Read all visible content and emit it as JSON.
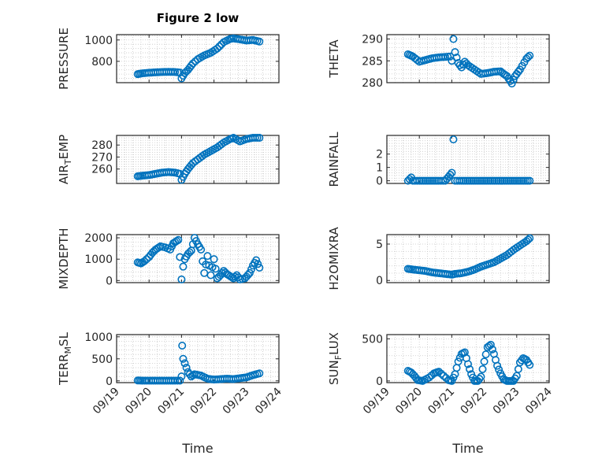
{
  "figure_title": "Figure 2 low",
  "x_label": "Time",
  "x_ticks": [
    "09/19",
    "09/20",
    "09/21",
    "09/22",
    "09/23",
    "09/24"
  ],
  "colors": {
    "marker": "#0072BD",
    "axis": "#262626",
    "grid": "#c8c8c8"
  },
  "chart_data": [
    {
      "type": "scatter",
      "name": "pressure",
      "ylabel": "PRESSURE",
      "ylim": [
        600,
        1050
      ],
      "yticks": [
        "800",
        "1000"
      ],
      "ytick_values": [
        800,
        1000
      ],
      "x": [
        19.65,
        19.8,
        20.0,
        20.2,
        20.4,
        20.6,
        20.8,
        20.95,
        21.0,
        21.1,
        21.2,
        21.35,
        21.5,
        21.7,
        21.9,
        22.1,
        22.3,
        22.5,
        22.6,
        22.8,
        23.0,
        23.2,
        23.4
      ],
      "y": [
        680,
        688,
        693,
        697,
        700,
        701,
        700,
        695,
        640,
        690,
        720,
        780,
        820,
        855,
        880,
        920,
        980,
        1010,
        1015,
        1005,
        995,
        1000,
        985
      ]
    },
    {
      "type": "scatter",
      "name": "theta",
      "ylabel": "THETA",
      "ylim": [
        280,
        291
      ],
      "yticks": [
        "280",
        "285",
        "290"
      ],
      "ytick_values": [
        280,
        285,
        290
      ],
      "x": [
        19.65,
        19.8,
        20.0,
        20.2,
        20.4,
        20.6,
        20.8,
        20.95,
        21.0,
        21.05,
        21.1,
        21.2,
        21.3,
        21.4,
        21.5,
        21.7,
        21.9,
        22.1,
        22.3,
        22.5,
        22.6,
        22.7,
        22.85,
        22.95,
        23.1,
        23.3,
        23.4
      ],
      "y": [
        286.5,
        286.0,
        284.8,
        285.2,
        285.6,
        285.8,
        285.9,
        286.0,
        285.0,
        290.0,
        287.0,
        284.5,
        283.5,
        284.8,
        284.0,
        283.0,
        282.0,
        282.2,
        282.5,
        282.6,
        282.0,
        281.5,
        279.8,
        281.5,
        283.0,
        285.5,
        286.2
      ]
    },
    {
      "type": "scatter",
      "name": "air_temp",
      "ylabel": "AIR_TEMP",
      "ylabel_main": "AIR",
      "ylabel_sub": "T",
      "ylabel_tail": "EMP",
      "ylim": [
        248,
        288
      ],
      "yticks": [
        "260",
        "270",
        "280"
      ],
      "ytick_values": [
        260,
        270,
        280
      ],
      "x": [
        19.65,
        19.8,
        20.0,
        20.2,
        20.4,
        20.6,
        20.8,
        20.95,
        21.0,
        21.1,
        21.2,
        21.35,
        21.5,
        21.7,
        21.9,
        22.1,
        22.3,
        22.5,
        22.6,
        22.8,
        23.0,
        23.2,
        23.4
      ],
      "y": [
        254,
        254.5,
        255,
        256,
        257,
        257.5,
        257,
        256,
        251,
        256,
        260,
        265,
        268,
        272,
        275,
        278,
        282,
        285,
        286,
        283,
        285,
        286,
        286
      ]
    },
    {
      "type": "scatter",
      "name": "rainfall",
      "ylabel": "RAINFALL",
      "ylim": [
        -0.2,
        3.4
      ],
      "yticks": [
        "0",
        "1",
        "2"
      ],
      "ytick_values": [
        0,
        1,
        2
      ],
      "x": [
        19.65,
        19.75,
        19.8,
        20.0,
        20.3,
        20.6,
        20.8,
        20.9,
        21.0,
        21.05,
        21.1,
        21.3,
        21.6,
        21.9,
        22.2,
        22.5,
        22.8,
        23.1,
        23.4
      ],
      "y": [
        0,
        0.25,
        0,
        0,
        0,
        0,
        0,
        0.3,
        0.6,
        3.1,
        0,
        0,
        0,
        0,
        0,
        0,
        0,
        0,
        0
      ]
    },
    {
      "type": "scatter",
      "name": "mixdepth",
      "ylabel": "MIXDEPTH",
      "ylim": [
        -100,
        2150
      ],
      "yticks": [
        "0",
        "1000",
        "2000"
      ],
      "ytick_values": [
        0,
        1000,
        2000
      ],
      "x": [
        19.65,
        19.75,
        19.85,
        20.0,
        20.1,
        20.2,
        20.35,
        20.5,
        20.65,
        20.75,
        20.85,
        20.9,
        20.95,
        21.0,
        21.05,
        21.1,
        21.2,
        21.3,
        21.4,
        21.5,
        21.6,
        21.7,
        21.8,
        21.9,
        22.0,
        22.1,
        22.2,
        22.3,
        22.4,
        22.5,
        22.6,
        22.7,
        22.8,
        22.95,
        23.1,
        23.2,
        23.3,
        23.4
      ],
      "y": [
        850,
        800,
        900,
        1100,
        1300,
        1450,
        1600,
        1550,
        1450,
        1750,
        1850,
        1900,
        1100,
        50,
        650,
        1000,
        1250,
        1400,
        2000,
        1700,
        1450,
        350,
        1150,
        250,
        1000,
        100,
        250,
        450,
        300,
        200,
        100,
        250,
        50,
        100,
        350,
        700,
        950,
        600
      ]
    },
    {
      "type": "scatter",
      "name": "h2omixra",
      "ylabel": "H2OMIXRA",
      "ylim": [
        -0.3,
        6.3
      ],
      "yticks": [
        "0",
        "5"
      ],
      "ytick_values": [
        0,
        5
      ],
      "x": [
        19.65,
        19.8,
        20.0,
        20.2,
        20.4,
        20.6,
        20.8,
        21.0,
        21.1,
        21.3,
        21.5,
        21.7,
        21.9,
        22.1,
        22.3,
        22.5,
        22.7,
        22.9,
        23.1,
        23.3,
        23.4
      ],
      "y": [
        1.6,
        1.5,
        1.4,
        1.3,
        1.1,
        1.0,
        0.9,
        0.8,
        0.9,
        1.0,
        1.2,
        1.5,
        1.9,
        2.2,
        2.5,
        3.0,
        3.5,
        4.2,
        4.8,
        5.4,
        5.8
      ]
    },
    {
      "type": "scatter",
      "name": "terr_msl",
      "ylabel": "TERR_MSL",
      "ylabel_main": "TERR",
      "ylabel_sub": "M",
      "ylabel_tail": "SL",
      "ylim": [
        -40,
        1050
      ],
      "yticks": [
        "0",
        "500",
        "1000"
      ],
      "ytick_values": [
        0,
        500,
        1000
      ],
      "x": [
        19.65,
        19.8,
        20.0,
        20.2,
        20.4,
        20.6,
        20.8,
        20.95,
        21.0,
        21.02,
        21.05,
        21.1,
        21.15,
        21.2,
        21.3,
        21.4,
        21.6,
        21.8,
        22.0,
        22.2,
        22.4,
        22.6,
        22.8,
        23.0,
        23.2,
        23.4
      ],
      "y": [
        10,
        5,
        5,
        5,
        5,
        5,
        5,
        5,
        100,
        800,
        500,
        400,
        300,
        200,
        100,
        150,
        120,
        50,
        30,
        40,
        50,
        40,
        60,
        80,
        130,
        170
      ]
    },
    {
      "type": "scatter",
      "name": "sun_flux",
      "ylabel": "SUN_FLUX",
      "ylabel_main": "SUN",
      "ylabel_sub": "F",
      "ylabel_tail": "LUX",
      "ylim": [
        -20,
        550
      ],
      "yticks": [
        "0",
        "500"
      ],
      "ytick_values": [
        0,
        500
      ],
      "x": [
        19.65,
        19.75,
        19.85,
        19.95,
        20.1,
        20.3,
        20.45,
        20.6,
        20.75,
        20.9,
        21.0,
        21.1,
        21.2,
        21.3,
        21.4,
        21.5,
        21.6,
        21.7,
        21.8,
        21.9,
        22.0,
        22.1,
        22.2,
        22.3,
        22.4,
        22.5,
        22.6,
        22.7,
        22.8,
        22.9,
        23.0,
        23.1,
        23.2,
        23.3,
        23.4
      ],
      "y": [
        120,
        100,
        60,
        10,
        0,
        40,
        90,
        110,
        60,
        10,
        0,
        80,
        230,
        320,
        340,
        200,
        80,
        0,
        0,
        50,
        230,
        400,
        430,
        320,
        180,
        90,
        20,
        0,
        0,
        0,
        60,
        220,
        270,
        250,
        190
      ]
    }
  ]
}
